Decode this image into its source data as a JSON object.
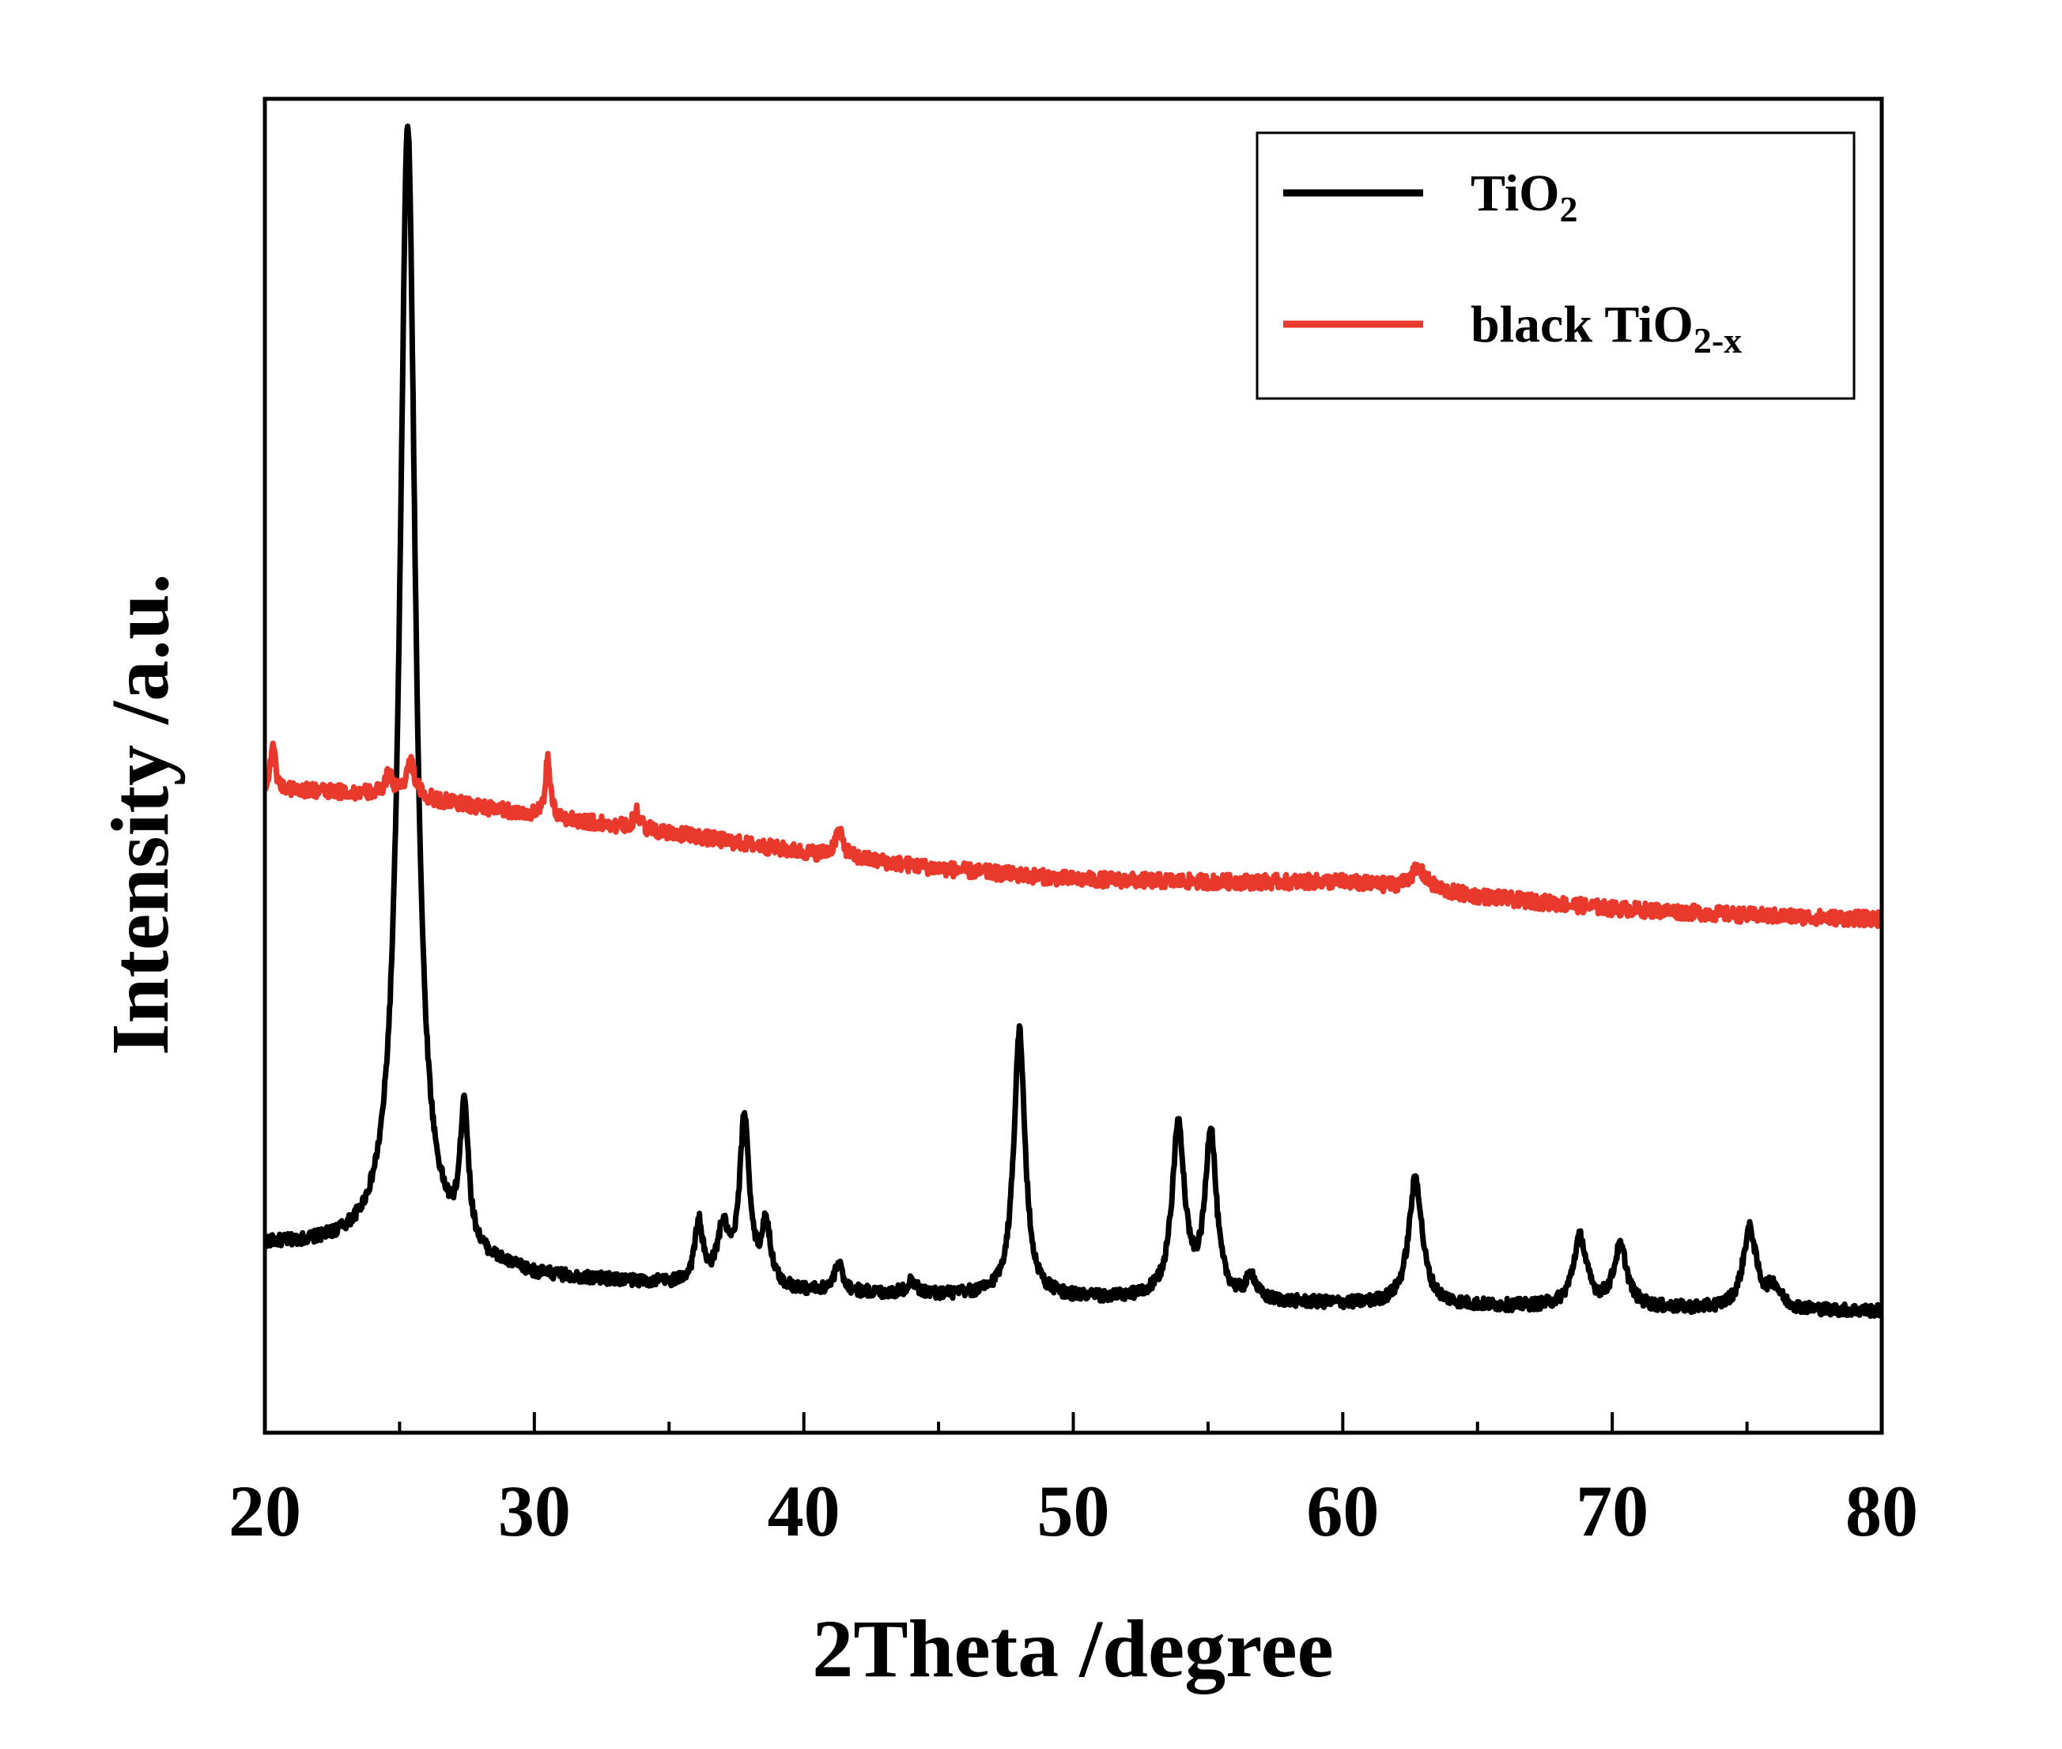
{
  "chart_data": {
    "type": "line",
    "xlabel": "2Theta /degree",
    "ylabel": "Intensity /a.u.",
    "xlim": [
      20,
      80
    ],
    "ylim": [
      0,
      100
    ],
    "x_ticks": [
      20,
      30,
      40,
      50,
      60,
      70,
      80
    ],
    "x_tick_labels": [
      "20",
      "30",
      "40",
      "50",
      "60",
      "70",
      "80"
    ],
    "y_ticks_shown": false,
    "grid": false,
    "legend_position": "top-right",
    "colors": {
      "TiO2": "#000000",
      "black TiO2-x": "#e8392c"
    },
    "series": [
      {
        "name": "TiO2",
        "legend_label": {
          "base": "TiO",
          "sub": "2"
        },
        "baseline": [
          [
            20,
            14.0
          ],
          [
            25,
            13.6
          ],
          [
            30,
            11.6
          ],
          [
            40,
            10.5
          ],
          [
            50,
            10.0
          ],
          [
            60,
            9.6
          ],
          [
            70,
            9.3
          ],
          [
            80,
            9.1
          ]
        ],
        "peaks": [
          {
            "x": 25.3,
            "height": 84.5,
            "width": 0.35
          },
          {
            "x": 27.4,
            "height": 10.5,
            "width": 0.18
          },
          {
            "x": 36.1,
            "height": 4.5,
            "width": 0.18
          },
          {
            "x": 37.0,
            "height": 4.0,
            "width": 0.25
          },
          {
            "x": 37.8,
            "height": 12.5,
            "width": 0.22
          },
          {
            "x": 38.6,
            "height": 4.5,
            "width": 0.2
          },
          {
            "x": 41.3,
            "height": 2.0,
            "width": 0.2
          },
          {
            "x": 44.0,
            "height": 1.0,
            "width": 0.2
          },
          {
            "x": 48.0,
            "height": 20.0,
            "width": 0.25
          },
          {
            "x": 53.9,
            "height": 13.0,
            "width": 0.28
          },
          {
            "x": 55.1,
            "height": 12.5,
            "width": 0.25
          },
          {
            "x": 56.6,
            "height": 1.8,
            "width": 0.2
          },
          {
            "x": 62.7,
            "height": 9.5,
            "width": 0.3
          },
          {
            "x": 68.8,
            "height": 5.2,
            "width": 0.3
          },
          {
            "x": 70.3,
            "height": 4.5,
            "width": 0.3
          },
          {
            "x": 75.1,
            "height": 6.0,
            "width": 0.3
          },
          {
            "x": 76.0,
            "height": 1.5,
            "width": 0.3
          }
        ]
      },
      {
        "name": "black TiO2-x",
        "legend_label": {
          "base": "black TiO",
          "sub": "2-x"
        },
        "baseline": [
          [
            20,
            48.3
          ],
          [
            25,
            47.8
          ],
          [
            30,
            46.3
          ],
          [
            35,
            45.0
          ],
          [
            40,
            43.5
          ],
          [
            45,
            42.3
          ],
          [
            50,
            41.5
          ],
          [
            55,
            41.3
          ],
          [
            60,
            41.3
          ],
          [
            65,
            40.2
          ],
          [
            70,
            39.3
          ],
          [
            75,
            38.8
          ],
          [
            80,
            38.5
          ]
        ],
        "peaks": [
          {
            "x": 20.3,
            "height": 3.5,
            "width": 0.1
          },
          {
            "x": 24.6,
            "height": 1.5,
            "width": 0.15
          },
          {
            "x": 25.4,
            "height": 2.5,
            "width": 0.2
          },
          {
            "x": 30.5,
            "height": 4.5,
            "width": 0.1
          },
          {
            "x": 33.8,
            "height": 1.2,
            "width": 0.15
          },
          {
            "x": 41.3,
            "height": 1.8,
            "width": 0.2
          },
          {
            "x": 62.8,
            "height": 1.5,
            "width": 0.4
          }
        ]
      }
    ]
  }
}
